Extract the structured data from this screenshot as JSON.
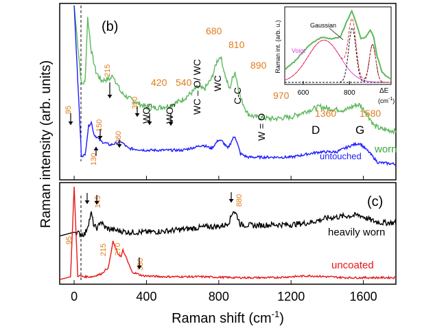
{
  "chart_data": [
    {
      "panel": "(b)",
      "type": "line",
      "ylabel": "Raman intensity (arb. units)",
      "xlim": [
        -80,
        1780
      ],
      "x_ticks": [
        0,
        400,
        800,
        1200,
        1600
      ],
      "series": [
        {
          "name": "worn",
          "color": "#5cb85c",
          "x": [
            0,
            40,
            60,
            75,
            95,
            120,
            150,
            200,
            215,
            260,
            300,
            350,
            420,
            500,
            540,
            600,
            650,
            680,
            720,
            760,
            790,
            810,
            840,
            860,
            875,
            890,
            920,
            960,
            1000,
            1100,
            1200,
            1300,
            1360,
            1400,
            1500,
            1560,
            1580,
            1620,
            1660,
            1700,
            1780
          ],
          "y": [
            1.0,
            0.55,
            0.56,
            0.93,
            0.74,
            0.62,
            0.57,
            0.58,
            0.6,
            0.5,
            0.47,
            0.44,
            0.41,
            0.42,
            0.43,
            0.46,
            0.5,
            0.53,
            0.52,
            0.58,
            0.68,
            0.71,
            0.58,
            0.52,
            0.58,
            0.62,
            0.47,
            0.38,
            0.36,
            0.35,
            0.36,
            0.4,
            0.42,
            0.41,
            0.4,
            0.43,
            0.43,
            0.38,
            0.31,
            0.29,
            0.28
          ]
        },
        {
          "name": "untouched",
          "color": "#1a1aff",
          "x": [
            0,
            40,
            60,
            80,
            95,
            110,
            130,
            150,
            200,
            260,
            300,
            400,
            500,
            600,
            680,
            710,
            760,
            800,
            820,
            850,
            880,
            890,
            920,
            960,
            1000,
            1200,
            1300,
            1360,
            1450,
            1540,
            1580,
            1630,
            1680,
            1780
          ],
          "y": [
            1.0,
            0.14,
            0.14,
            0.31,
            0.33,
            0.26,
            0.24,
            0.22,
            0.2,
            0.22,
            0.18,
            0.17,
            0.17,
            0.17,
            0.19,
            0.2,
            0.18,
            0.23,
            0.22,
            0.18,
            0.24,
            0.25,
            0.15,
            0.13,
            0.13,
            0.13,
            0.15,
            0.16,
            0.16,
            0.2,
            0.21,
            0.16,
            0.1,
            0.09
          ]
        }
      ],
      "annotations": [
        {
          "text": "95",
          "x": 95
        },
        {
          "text": "130",
          "x": 130
        },
        {
          "text": "150",
          "x": 150
        },
        {
          "text": "215",
          "x": 215
        },
        {
          "text": "260",
          "x": 260
        },
        {
          "text": "350",
          "x": 350
        },
        {
          "text": "420",
          "x": 420
        },
        {
          "text": "540",
          "x": 540
        },
        {
          "text": "680",
          "x": 680
        },
        {
          "text": "810",
          "x": 810
        },
        {
          "text": "890",
          "x": 890
        },
        {
          "text": "970",
          "x": 970
        },
        {
          "text": "1360",
          "x": 1360
        },
        {
          "text": "1580",
          "x": 1580
        },
        {
          "text": "WO3",
          "x": 420
        },
        {
          "text": "WO3",
          "x": 540
        },
        {
          "text": "WC – O/ WC",
          "x": 680
        },
        {
          "text": "WC",
          "x": 810
        },
        {
          "text": "C-C",
          "x": 890
        },
        {
          "text": "W = O",
          "x": 970
        },
        {
          "text": "D",
          "x": 1360
        },
        {
          "text": "G",
          "x": 1580
        }
      ]
    },
    {
      "panel": "(c)",
      "type": "line",
      "xlabel": "Raman shift (cm-1)",
      "xlim": [
        -80,
        1780
      ],
      "x_ticks": [
        0,
        400,
        800,
        1200,
        1600
      ],
      "series": [
        {
          "name": "heavily worn",
          "color": "#000000",
          "x": [
            -80,
            0,
            40,
            60,
            80,
            95,
            110,
            130,
            145,
            170,
            200,
            300,
            400,
            500,
            600,
            700,
            750,
            800,
            840,
            860,
            880,
            900,
            920,
            1000,
            1100,
            1200,
            1300,
            1400,
            1500,
            1580,
            1650,
            1700,
            1780
          ],
          "y": [
            0.48,
            0.52,
            0.5,
            0.5,
            0.62,
            0.72,
            0.58,
            0.56,
            0.64,
            0.57,
            0.55,
            0.52,
            0.52,
            0.53,
            0.55,
            0.57,
            0.58,
            0.58,
            0.6,
            0.64,
            0.75,
            0.7,
            0.6,
            0.59,
            0.6,
            0.6,
            0.62,
            0.67,
            0.69,
            0.7,
            0.64,
            0.62,
            0.62
          ]
        },
        {
          "name": "uncoated",
          "color": "#e81515",
          "x": [
            -80,
            -20,
            0,
            20,
            60,
            100,
            150,
            190,
            215,
            240,
            260,
            270,
            290,
            320,
            380,
            500,
            700,
            900,
            1100,
            1300,
            1500,
            1600,
            1780
          ],
          "y": [
            0.02,
            0.05,
            1.0,
            0.06,
            0.05,
            0.05,
            0.08,
            0.15,
            0.42,
            0.3,
            0.26,
            0.33,
            0.24,
            0.1,
            0.06,
            0.05,
            0.05,
            0.04,
            0.04,
            0.06,
            0.04,
            0.04,
            0.04
          ]
        }
      ],
      "annotations": [
        {
          "text": "95",
          "x": 95
        },
        {
          "text": "145",
          "x": 145
        },
        {
          "text": "880",
          "x": 880
        },
        {
          "text": "215",
          "x": 215
        },
        {
          "text": "270",
          "x": 270
        },
        {
          "text": "380",
          "x": 380
        }
      ]
    },
    {
      "panel": "inset",
      "type": "line",
      "ylabel": "Raman int. (arb. u.)",
      "xlabel": "ΔE (cm-1)",
      "xlim": [
        520,
        980
      ],
      "x_ticks": [
        600,
        800
      ],
      "series": [
        {
          "name": "data",
          "color": "#5cb85c",
          "x": [
            520,
            560,
            600,
            640,
            680,
            720,
            760,
            790,
            810,
            830,
            850,
            870,
            890,
            905,
            920,
            940,
            960,
            980
          ],
          "y": [
            0.18,
            0.28,
            0.42,
            0.55,
            0.62,
            0.6,
            0.62,
            0.85,
            0.98,
            0.8,
            0.6,
            0.62,
            0.72,
            0.62,
            0.35,
            0.15,
            0.08,
            0.05
          ]
        }
      ],
      "labels": {
        "gaussian": "Gaussian",
        "voigt": "Voigt"
      }
    }
  ],
  "text": {
    "panel_b": "(b)",
    "panel_c": "(c)",
    "ylabel": "Raman intensity (arb. units)",
    "xlabel": "Raman shift (cm",
    "xlabel_sup": "-1",
    "xlabel_end": ")",
    "legend_worn": "worn",
    "legend_untouched": "untouched",
    "legend_heavily_worn": "heavily worn",
    "legend_uncoated": "uncoated",
    "inset_ylabel": "Raman int. (arb. u.)",
    "inset_gaussian": "Gaussian",
    "inset_voigt": "Voigt",
    "inset_xlabel_delta": "ΔE",
    "inset_xlabel_unit": "(cm",
    "inset_xlabel_sup": "-1",
    "inset_xlabel_end": ")",
    "lbl_wo3_a": "WO",
    "lbl_wo3_b": "WO",
    "lbl_sub3": "3",
    "lbl_wco": "WC – O/ WC",
    "lbl_wc": "WC",
    "lbl_cc": "C-C",
    "lbl_wo": "W = O",
    "lbl_d": "D",
    "lbl_g": "G"
  },
  "colors": {
    "worn": "#5cb85c",
    "untouched": "#1a1aff",
    "heavily_worn": "#000000",
    "uncoated": "#e81515",
    "orange_label": "#e07b1a",
    "voigt": "#e040e0"
  }
}
